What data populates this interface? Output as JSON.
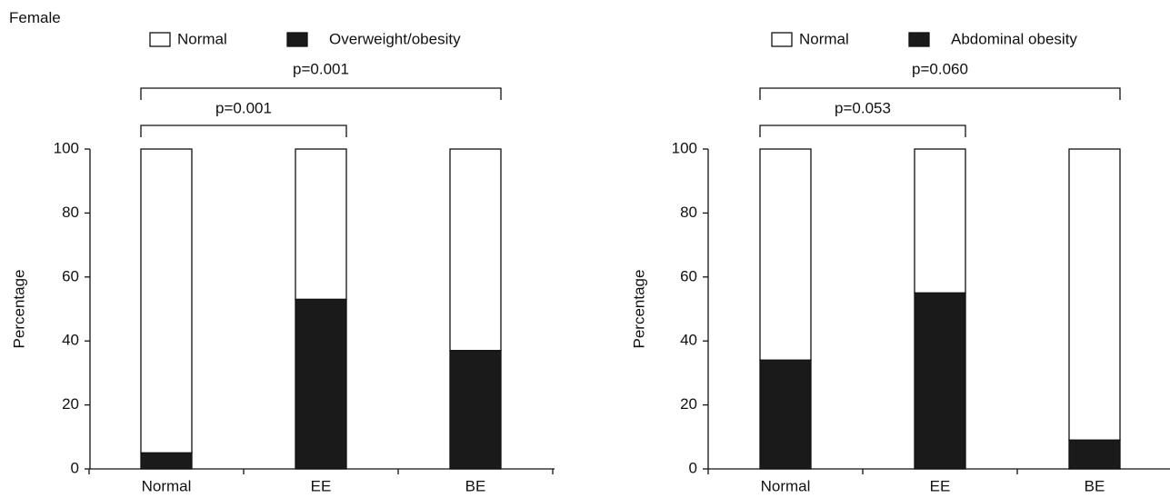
{
  "figure": {
    "label": "Female"
  },
  "chart_data": [
    {
      "type": "bar",
      "stacked": true,
      "categories": [
        "Normal",
        "EE",
        "BE"
      ],
      "series": [
        {
          "name": "Normal",
          "color": "#ffffff",
          "values": [
            95,
            47,
            63
          ]
        },
        {
          "name": "Overweight/obesity",
          "color": "#1a1a1a",
          "values": [
            5,
            53,
            37
          ]
        }
      ],
      "ylabel": "Percentage",
      "xlabel": "",
      "ylim": [
        0,
        100
      ],
      "yticks": [
        0,
        20,
        40,
        60,
        80,
        100
      ],
      "legend_placement": "top",
      "grid": false,
      "annotations": [
        {
          "text": "p=0.001",
          "from": "Normal",
          "to": "BE"
        },
        {
          "text": "p=0.001",
          "from": "Normal",
          "to": "EE"
        }
      ]
    },
    {
      "type": "bar",
      "stacked": true,
      "categories": [
        "Normal",
        "EE",
        "BE"
      ],
      "series": [
        {
          "name": "Normal",
          "color": "#ffffff",
          "values": [
            66,
            45,
            91
          ]
        },
        {
          "name": "Abdominal obesity",
          "color": "#1a1a1a",
          "values": [
            34,
            55,
            9
          ]
        }
      ],
      "ylabel": "Percentage",
      "xlabel": "",
      "ylim": [
        0,
        100
      ],
      "yticks": [
        0,
        20,
        40,
        60,
        80,
        100
      ],
      "legend_placement": "top",
      "grid": false,
      "annotations": [
        {
          "text": "p=0.060",
          "from": "Normal",
          "to": "BE"
        },
        {
          "text": "p=0.053",
          "from": "Normal",
          "to": "EE"
        }
      ]
    }
  ]
}
